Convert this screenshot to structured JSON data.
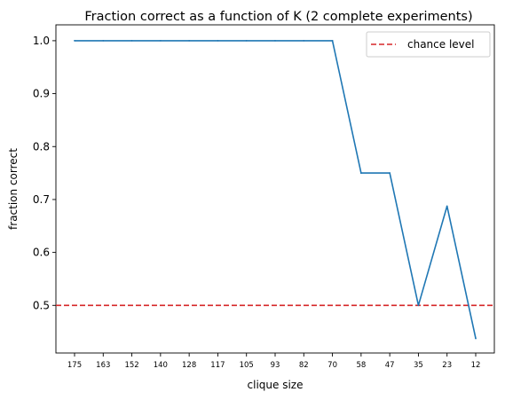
{
  "chart_data": {
    "type": "line",
    "title": "Fraction correct as a function of K (2 complete experiments)",
    "xlabel": "clique size",
    "ylabel": "fraction correct",
    "categories": [
      "175",
      "163",
      "152",
      "140",
      "128",
      "117",
      "105",
      "93",
      "82",
      "70",
      "58",
      "47",
      "35",
      "23",
      "12"
    ],
    "series": [
      {
        "values": [
          1.0,
          1.0,
          1.0,
          1.0,
          1.0,
          1.0,
          1.0,
          1.0,
          1.0,
          1.0,
          0.75,
          0.75,
          0.5,
          0.6875,
          0.4375
        ],
        "color": "#1f77b4"
      }
    ],
    "reference_line": {
      "name": "chance level",
      "value": 0.5,
      "color": "#d62728",
      "style": "dashed"
    },
    "ylim": [
      0.41,
      1.03
    ],
    "yticks": [
      0.5,
      0.6,
      0.7,
      0.8,
      0.9,
      1.0
    ],
    "ytick_labels": [
      "0.5",
      "0.6",
      "0.7",
      "0.8",
      "0.9",
      "1.0"
    ],
    "grid": false,
    "legend_position": "top-right"
  }
}
